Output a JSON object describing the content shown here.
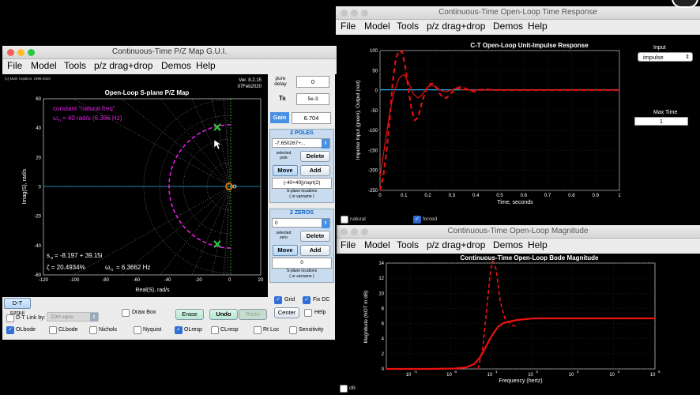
{
  "pzmap_window": {
    "title": "Continuous-Time P/Z Map G.U.I.",
    "menus": [
      "File",
      "Model",
      "Tools",
      "p/z drag+drop",
      "Demos",
      "Help"
    ],
    "credit": "(c) Mark Hopkins, 1996-2020",
    "version": "Ver. 8.2.15",
    "date": "07Feb2020",
    "plot_title": "Open-Loop S-plane P/Z Map",
    "xlabel": "Real(S), rad/s",
    "ylabel": "Imag(S), rad/s",
    "xticks": [
      "-120",
      "-100",
      "-80",
      "-60",
      "-40",
      "-20",
      "0",
      "20"
    ],
    "yticks": [
      "60",
      "40",
      "20",
      "0",
      "-20",
      "-40",
      "-60"
    ],
    "annotation_const": "constant \"natural freq\"",
    "annotation_omega": "ω",
    "annotation_omega_sub": "n",
    "annotation_omega_val": "= 40 rad/s (6.366 Hz)",
    "so_label": "s",
    "so_sub": "o",
    "so_value": "= -8.197 + 39.15i",
    "zeta_label": "ζ = 20.4934%",
    "wn_label": "ω",
    "wn_sub": "n",
    "wn_value": "= 6.3662 Hz",
    "pure_delay_label": "pure delay",
    "pure_delay_value": "0",
    "ts_label": "Ts",
    "ts_value": "5e-3",
    "gain_label": "Gain",
    "gain_value": "6.704",
    "poles_header": "2 POLES",
    "poles_select": "-7.650267+...",
    "selected_pole_label": "selected pole",
    "delete_label": "Delete",
    "move_label": "Move",
    "add_label": "Add",
    "pole_expr": "(-40+40j)/sqrt(2)",
    "splane_label": "S-plane locations",
    "splane_sub": "( or varname )",
    "zeros_header": "2 ZEROS",
    "zeros_select": "0",
    "selected_zero_label": "selected zero",
    "zero_delete": "Delete",
    "zero_move": "Move",
    "zero_add": "Add",
    "zero_expr": "0",
    "zero_splane_label": "S-plane locations",
    "zero_splane_sub": "( or varname )",
    "grid_label": "Grid",
    "fixdc_label": "Fix DC",
    "center_label": "Center",
    "help_label": "Help",
    "dt_pzgui": "D-T pzgui",
    "dt_link": "D-T Link by:",
    "zoh_value": "ZOH equiv",
    "drawbox": "Draw Box",
    "erase": "Erase",
    "undo": "Undo",
    "redo": "Redo",
    "checks": [
      "OLbode",
      "CLbode",
      "Nichols",
      "Nyquist",
      "OLresp",
      "CLresp",
      "Rt Loc",
      "Sensitivity"
    ]
  },
  "time_window": {
    "title": "Continuous-Time Open-Loop Time Response",
    "menus": [
      "File",
      "Model",
      "Tools",
      "p/z drag+drop",
      "Demos",
      "Help"
    ],
    "plot_title": "C-T Open-Loop Unit-Impulse Response",
    "xlabel": "Time, seconds",
    "ylabel": "Impulse Input (green), Output (red)",
    "xticks": [
      "0",
      "0.1",
      "0.2",
      "0.3",
      "0.4",
      "0.5",
      "0.6",
      "0.7",
      "0.8",
      "0.9",
      "1"
    ],
    "yticks": [
      "100",
      "50",
      "0",
      "-50",
      "-100",
      "-150",
      "-200",
      "-250"
    ],
    "input_label": "Input",
    "input_value": "impulse",
    "maxtime_label": "Max Time",
    "maxtime_value": "1",
    "natural_label": "natural",
    "forced_label": "forced"
  },
  "mag_window": {
    "title": "Continuous-Time Open-Loop Magnitude",
    "menus": [
      "File",
      "Model",
      "Tools",
      "p/z drag+drop",
      "Demos",
      "Help"
    ],
    "plot_title": "Continuous-Time Open-Loop Bode Magnitude",
    "xlabel": "Frequency (hertz)",
    "ylabel": "Magnitude (NOT in dB)",
    "yticks": [
      "14",
      "12",
      "10",
      "8",
      "6",
      "4",
      "2",
      "0"
    ],
    "xtick_base": "10",
    "xtick_exps": [
      "-1",
      "0",
      "1",
      "2",
      "3",
      "4",
      "5"
    ],
    "db_label": "dB"
  },
  "colors": {
    "pole_marker": "#2ecc40",
    "dashed_red": "#d11",
    "magenta": "#e020e0",
    "zero_marker": "#ff7f00"
  }
}
